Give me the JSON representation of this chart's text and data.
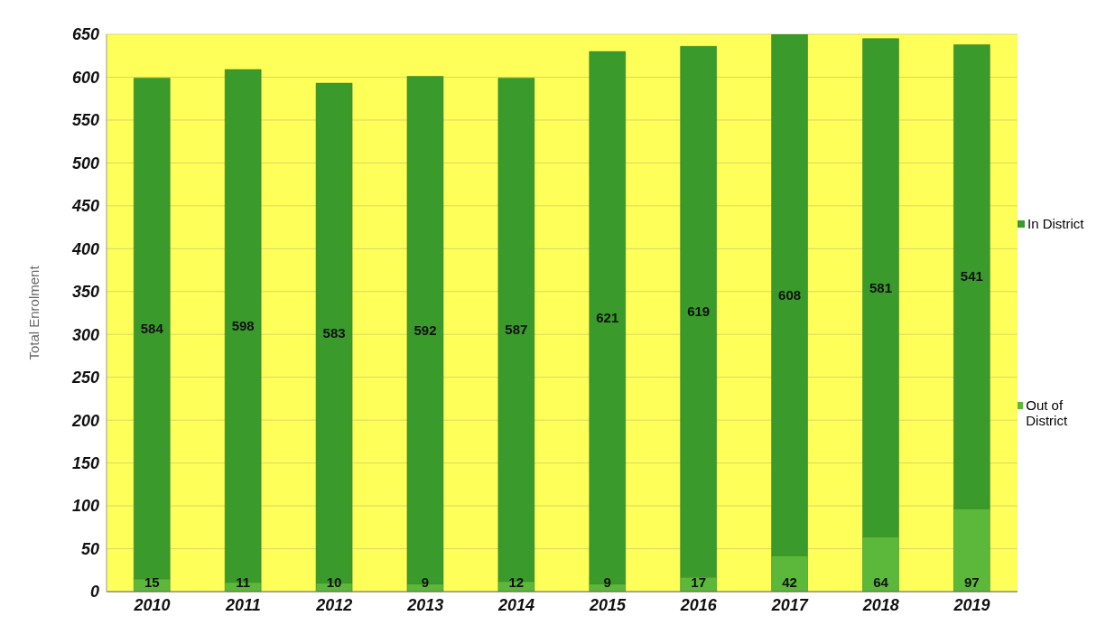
{
  "chart_data": {
    "type": "bar",
    "stacked": true,
    "ylabel": "Total Enrolment",
    "categories": [
      "2010",
      "2011",
      "2012",
      "2013",
      "2014",
      "2015",
      "2016",
      "2017",
      "2018",
      "2019"
    ],
    "series": [
      {
        "name": "Out of District",
        "color": "#5cb83a",
        "values": [
          15,
          11,
          10,
          9,
          12,
          9,
          17,
          42,
          64,
          97
        ]
      },
      {
        "name": "In District",
        "color": "#3a9a2c",
        "values": [
          584,
          598,
          583,
          592,
          587,
          621,
          619,
          608,
          581,
          541
        ]
      }
    ],
    "ylim": [
      0,
      650
    ],
    "yticks": [
      0,
      50,
      100,
      150,
      200,
      250,
      300,
      350,
      400,
      450,
      500,
      550,
      600,
      650
    ],
    "grid": "y",
    "legend": "right",
    "data_labels": true
  }
}
